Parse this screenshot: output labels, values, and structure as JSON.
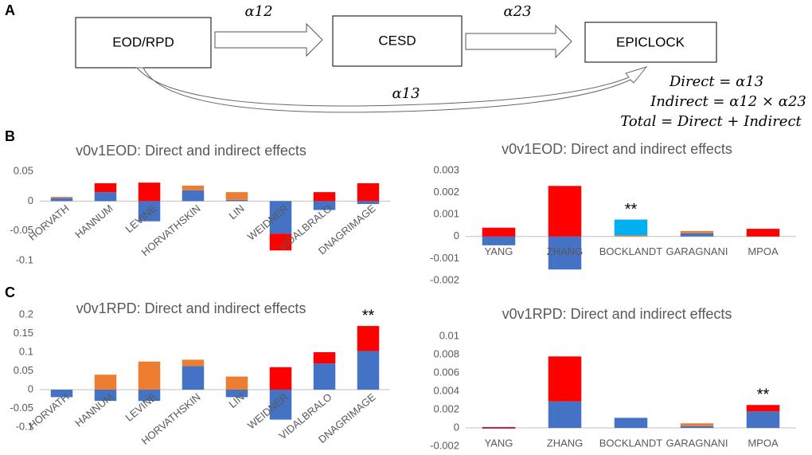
{
  "diagram": {
    "panels": [
      "A",
      "B",
      "C"
    ],
    "boxes": [
      "EOD/RPD",
      "CESD",
      "EPICLOCK"
    ],
    "arrows": [
      "α12",
      "α23",
      "α13"
    ],
    "equations": [
      "Direct = α13",
      "Indirect = α12 × α23",
      "Total = Direct + Indirect"
    ]
  },
  "chart_data": [
    {
      "type": "bar",
      "stacked": true,
      "title": "v0v1EOD: Direct and indirect effects",
      "categories": [
        "HORVATH",
        "HANNUM",
        "LEVINE",
        "HORVATHSKIN",
        "LIN",
        "WEIDNER",
        "VIDALBRALO",
        "DNAGRIMAGE"
      ],
      "series": [
        {
          "color": "#4472c4",
          "values": [
            0.005,
            0.015,
            -0.034,
            0.018,
            0.002,
            -0.055,
            -0.015,
            -0.005
          ]
        },
        {
          "color": "#ed7d31",
          "values": [
            0.002,
            0,
            0,
            0.008,
            0.013,
            0,
            0,
            0
          ]
        },
        {
          "color": "#ff0000",
          "values": [
            0,
            0.015,
            0.031,
            0,
            0,
            -0.028,
            0.015,
            0.03
          ]
        }
      ],
      "ylim": [
        -0.1,
        0.05
      ],
      "yticks": [
        -0.1,
        -0.05,
        0,
        0.05
      ]
    },
    {
      "type": "bar",
      "stacked": true,
      "title": "v0v1EOD: Direct and indirect effects",
      "categories": [
        "YANG",
        "ZHANG",
        "BOCKLANDT",
        "GARAGNANI",
        "MPOA"
      ],
      "series": [
        {
          "color": "#4472c4",
          "values": [
            -0.0004,
            -0.0015,
            0,
            0.00015,
            0
          ]
        },
        {
          "color": "#ed7d31",
          "values": [
            0,
            0,
            5e-05,
            0.0001,
            0
          ]
        },
        {
          "color": "#ff0000",
          "values": [
            0.0004,
            0.0023,
            0,
            0,
            0.00035
          ]
        },
        {
          "color": "#00b0f0",
          "values": [
            0,
            0,
            0.00072,
            0,
            0
          ]
        }
      ],
      "ylim": [
        -0.002,
        0.003
      ],
      "yticks": [
        -0.002,
        -0.001,
        0,
        0.001,
        0.002,
        0.003
      ],
      "annotations": [
        {
          "text": "**",
          "category": "BOCKLANDT"
        }
      ]
    },
    {
      "type": "bar",
      "stacked": true,
      "title": "v0v1RPD: Direct and indirect effects",
      "categories": [
        "HORVATH",
        "HANNUM",
        "LEVINE",
        "HORVATHSKIN",
        "LIN",
        "WEIDNER",
        "VIDALBRALO",
        "DNAGRIMAGE"
      ],
      "series": [
        {
          "color": "#4472c4",
          "values": [
            -0.02,
            -0.03,
            -0.03,
            0.063,
            -0.02,
            -0.08,
            0.07,
            0.103
          ]
        },
        {
          "color": "#ed7d31",
          "values": [
            0,
            0.04,
            0.075,
            0.017,
            0.035,
            0,
            0,
            0
          ]
        },
        {
          "color": "#ff0000",
          "values": [
            0,
            0,
            0,
            0,
            0,
            0.06,
            0.03,
            0.067
          ]
        }
      ],
      "ylim": [
        -0.1,
        0.2
      ],
      "yticks": [
        -0.1,
        -0.05,
        0,
        0.05,
        0.1,
        0.15,
        0.2
      ],
      "annotations": [
        {
          "text": "**",
          "category": "DNAGRIMAGE"
        }
      ]
    },
    {
      "type": "bar",
      "stacked": true,
      "title": "v0v1RPD: Direct and indirect effects",
      "categories": [
        "YANG",
        "ZHANG",
        "BOCKLANDT",
        "GARAGNANI",
        "MPOA"
      ],
      "series": [
        {
          "color": "#4472c4",
          "values": [
            -0.0001,
            0.0029,
            0.0011,
            0.0002,
            0.0018
          ]
        },
        {
          "color": "#ed7d31",
          "values": [
            0,
            0,
            0,
            0.0003,
            0
          ]
        },
        {
          "color": "#ff0000",
          "values": [
            0.0001,
            0.0049,
            0,
            0,
            0.0007
          ]
        }
      ],
      "ylim": [
        -0.002,
        0.01
      ],
      "yticks": [
        -0.002,
        0,
        0.002,
        0.004,
        0.006,
        0.008,
        0.01
      ],
      "annotations": [
        {
          "text": "**",
          "category": "MPOA"
        }
      ]
    }
  ]
}
